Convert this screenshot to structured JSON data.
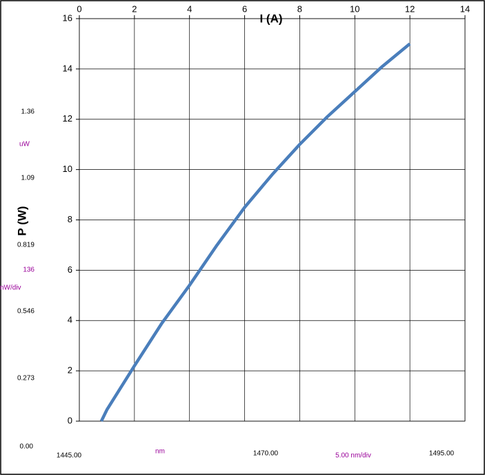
{
  "chart_data": {
    "type": "line",
    "xlabel": "I (A)",
    "ylabel": "P (W)",
    "xlim": [
      0,
      14
    ],
    "xticks": [
      0,
      2,
      4,
      6,
      8,
      10,
      12,
      14
    ],
    "ylim": [
      0,
      16
    ],
    "yticks": [
      0,
      2,
      4,
      6,
      8,
      10,
      12,
      14,
      16
    ],
    "grid": true,
    "series": [
      {
        "color": "#4a7ebb",
        "x": [
          0.8,
          1,
          2,
          3,
          4,
          5,
          6,
          7,
          8,
          9,
          10,
          11,
          12
        ],
        "values": [
          0,
          0.45,
          2.2,
          3.9,
          5.4,
          7.0,
          8.5,
          9.8,
          11.0,
          12.1,
          13.1,
          14.1,
          15.0
        ]
      }
    ],
    "annotations": [
      {
        "text": "1.36",
        "color": "#000000"
      },
      {
        "text": "uW",
        "color": "#990099"
      },
      {
        "text": "1.09",
        "color": "#000000"
      },
      {
        "text": "0.819",
        "color": "#000000"
      },
      {
        "text": "136",
        "color": "#990099"
      },
      {
        "text": "nW/div",
        "color": "#990099"
      },
      {
        "text": "0.546",
        "color": "#000000"
      },
      {
        "text": "0.273",
        "color": "#000000"
      },
      {
        "text": "0.00",
        "color": "#000000"
      },
      {
        "text": "1445.00",
        "color": "#000000"
      },
      {
        "text": "nm",
        "color": "#990099"
      },
      {
        "text": "1470.00",
        "color": "#000000"
      },
      {
        "text": "5.00 nm/div",
        "color": "#990099"
      },
      {
        "text": "1495.00",
        "color": "#000000"
      }
    ]
  }
}
